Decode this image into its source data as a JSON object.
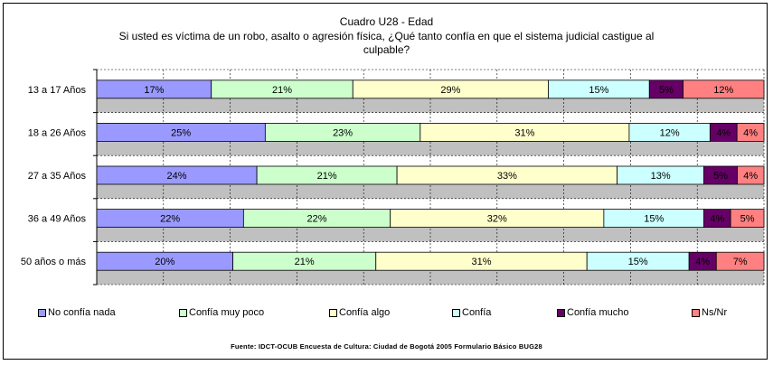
{
  "chart_data": {
    "type": "bar",
    "orientation": "horizontal",
    "stacked": "percent",
    "title": "Cuadro U28 - Edad",
    "subtitle_line1": "Si usted es víctima de un robo, asalto o agresión física, ¿Qué tanto confía en que el sistema judicial castigue al",
    "subtitle_line2": "culpable?",
    "categories": [
      "13 a 17 Años",
      "18 a 26 Años",
      "27 a 35 Años",
      "36 a 49 Años",
      "50 años o más"
    ],
    "series": [
      {
        "name": "No confía nada",
        "color": "#9999FF",
        "values": [
          17,
          25,
          24,
          22,
          20
        ],
        "labels": [
          "17%",
          "25%",
          "24%",
          "22%",
          "20%"
        ]
      },
      {
        "name": "Confía muy poco",
        "color": "#CCFFCC",
        "values": [
          21,
          23,
          21,
          22,
          21
        ],
        "labels": [
          "21%",
          "23%",
          "21%",
          "22%",
          "21%"
        ]
      },
      {
        "name": "Confía algo",
        "color": "#FFFFCC",
        "values": [
          29,
          31,
          33,
          32,
          31
        ],
        "labels": [
          "29%",
          "31%",
          "33%",
          "32%",
          "31%"
        ]
      },
      {
        "name": "Confía",
        "color": "#CCFFFF",
        "values": [
          15,
          12,
          13,
          15,
          15
        ],
        "labels": [
          "15%",
          "12%",
          "13%",
          "15%",
          "15%"
        ]
      },
      {
        "name": "Confía mucho",
        "color": "#660066",
        "values": [
          5,
          4,
          5,
          4,
          4
        ],
        "labels": [
          "5%",
          "4%",
          "5%",
          "4%",
          "4%"
        ]
      },
      {
        "name": "Ns/Nr",
        "color": "#FF8080",
        "values": [
          12,
          4,
          4,
          5,
          7
        ],
        "labels": [
          "12%",
          "4%",
          "4%",
          "5%",
          "7%"
        ]
      }
    ],
    "xlim": [
      0,
      100
    ],
    "grid": true,
    "plot_background": "#C0C0C0",
    "legend_position": "bottom",
    "source": "Fuente: IDCT-OCUB Encuesta de Cultura: Ciudad de Bogotá 2005 Formulario Básico BUG28"
  }
}
